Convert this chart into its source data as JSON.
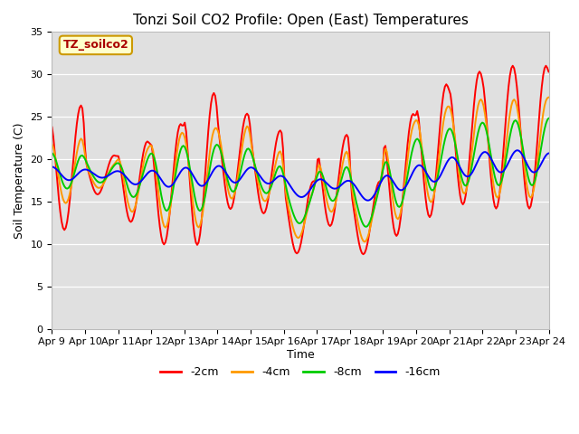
{
  "title": "Tonzi Soil CO2 Profile: Open (East) Temperatures",
  "xlabel": "Time",
  "ylabel": "Soil Temperature (C)",
  "legend_label": "TZ_soilco2",
  "series_labels": [
    "-2cm",
    "-4cm",
    "-8cm",
    "-16cm"
  ],
  "series_colors": [
    "#ff0000",
    "#ff9900",
    "#00cc00",
    "#0000ff"
  ],
  "ylim": [
    0,
    35
  ],
  "plot_bg": "#e0e0e0",
  "fig_bg": "#ffffff",
  "xtick_labels": [
    "Apr 9",
    "Apr 10",
    "Apr 11",
    "Apr 12",
    "Apr 13",
    "Apr 14",
    "Apr 15",
    "Apr 16",
    "Apr 17",
    "Apr 18",
    "Apr 19",
    "Apr 20",
    "Apr 21",
    "Apr 22",
    "Apr 23",
    "Apr 24"
  ],
  "grid_color": "#ffffff",
  "legend_box_facecolor": "#ffffcc",
  "legend_box_edgecolor": "#cc9900",
  "day_peaks_2cm": [
    26.5,
    20.5,
    22.2,
    24.3,
    28.0,
    25.5,
    23.5,
    17.5,
    23.0,
    17.5,
    25.5,
    29.0,
    30.5,
    31.2
  ],
  "day_troughs_2cm": [
    11.5,
    15.8,
    12.5,
    9.8,
    9.7,
    14.0,
    13.5,
    8.8,
    12.0,
    8.7,
    10.8,
    13.0,
    14.5,
    14.0
  ],
  "day_peaks_4cm": [
    23.0,
    19.5,
    21.5,
    23.5,
    24.0,
    24.5,
    21.5,
    16.5,
    21.5,
    17.0,
    24.5,
    26.5,
    27.5,
    27.5
  ],
  "day_troughs_4cm": [
    14.5,
    16.5,
    13.5,
    11.5,
    11.5,
    15.0,
    14.8,
    10.5,
    13.5,
    10.0,
    12.5,
    14.5,
    15.5,
    15.0
  ],
  "day_peaks_8cm": [
    21.5,
    19.5,
    20.5,
    22.5,
    22.5,
    22.5,
    20.5,
    16.5,
    20.5,
    17.0,
    22.5,
    24.0,
    25.0,
    25.5
  ],
  "day_troughs_8cm": [
    16.0,
    17.0,
    15.0,
    13.0,
    13.0,
    15.5,
    15.5,
    12.0,
    14.5,
    11.5,
    13.5,
    15.5,
    16.0,
    16.0
  ],
  "day_peaks_16cm": [
    19.5,
    19.0,
    19.0,
    19.5,
    20.0,
    20.0,
    19.5,
    17.5,
    18.5,
    17.5,
    19.5,
    20.5,
    21.5,
    22.0
  ],
  "day_troughs_16cm": [
    17.0,
    17.5,
    16.5,
    16.0,
    16.0,
    16.5,
    16.5,
    15.0,
    16.0,
    14.5,
    15.5,
    16.5,
    17.0,
    17.5
  ],
  "n_pts_per_day": 24,
  "peak_phase": 0.625,
  "trough_phase": 0.1
}
